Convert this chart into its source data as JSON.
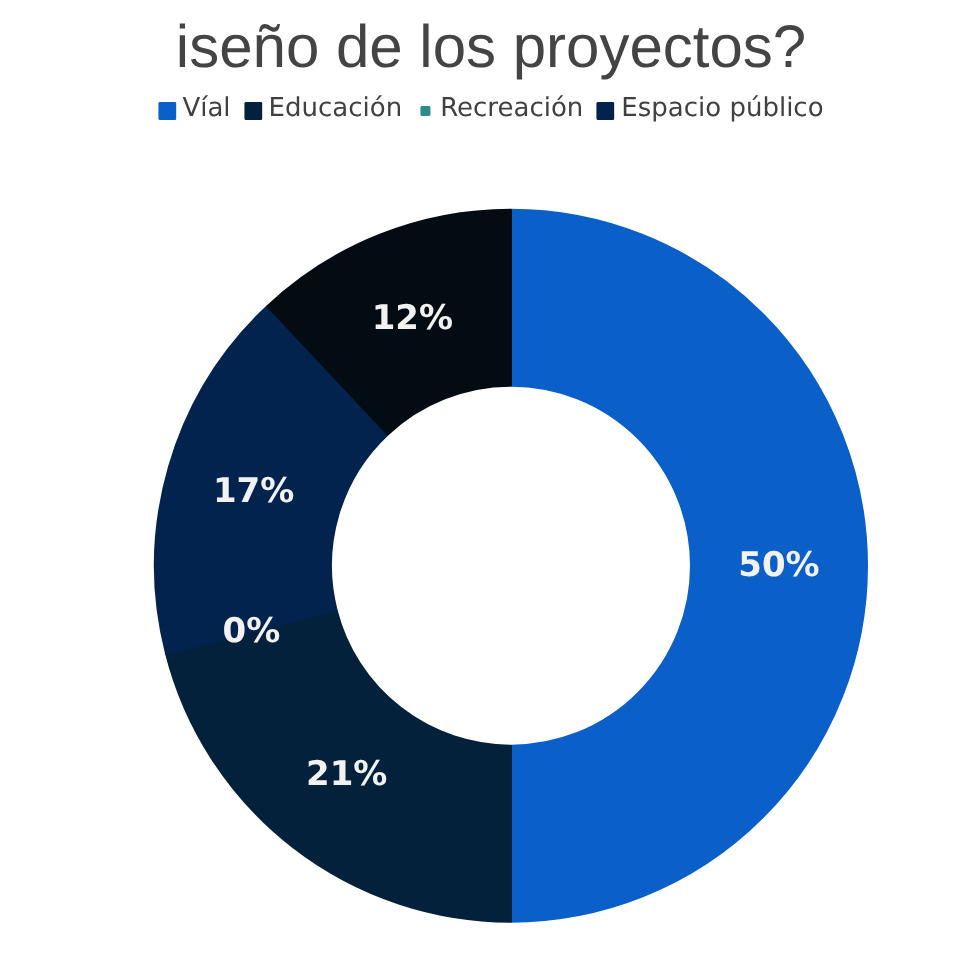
{
  "chart_data": {
    "type": "donut",
    "title": "iseño de los proyectos?",
    "categories": [
      "Víal",
      "Educación",
      "Recreación",
      "Espacio público",
      null
    ],
    "values": [
      50,
      21,
      0,
      17,
      12
    ],
    "colors": [
      "#0a5fc8",
      "#03213a",
      "#2a8c8c",
      "#03234f",
      "#020c12"
    ],
    "value_labels": [
      "50%",
      "21%",
      "0%",
      "17%",
      "12%"
    ],
    "legend": "top"
  }
}
